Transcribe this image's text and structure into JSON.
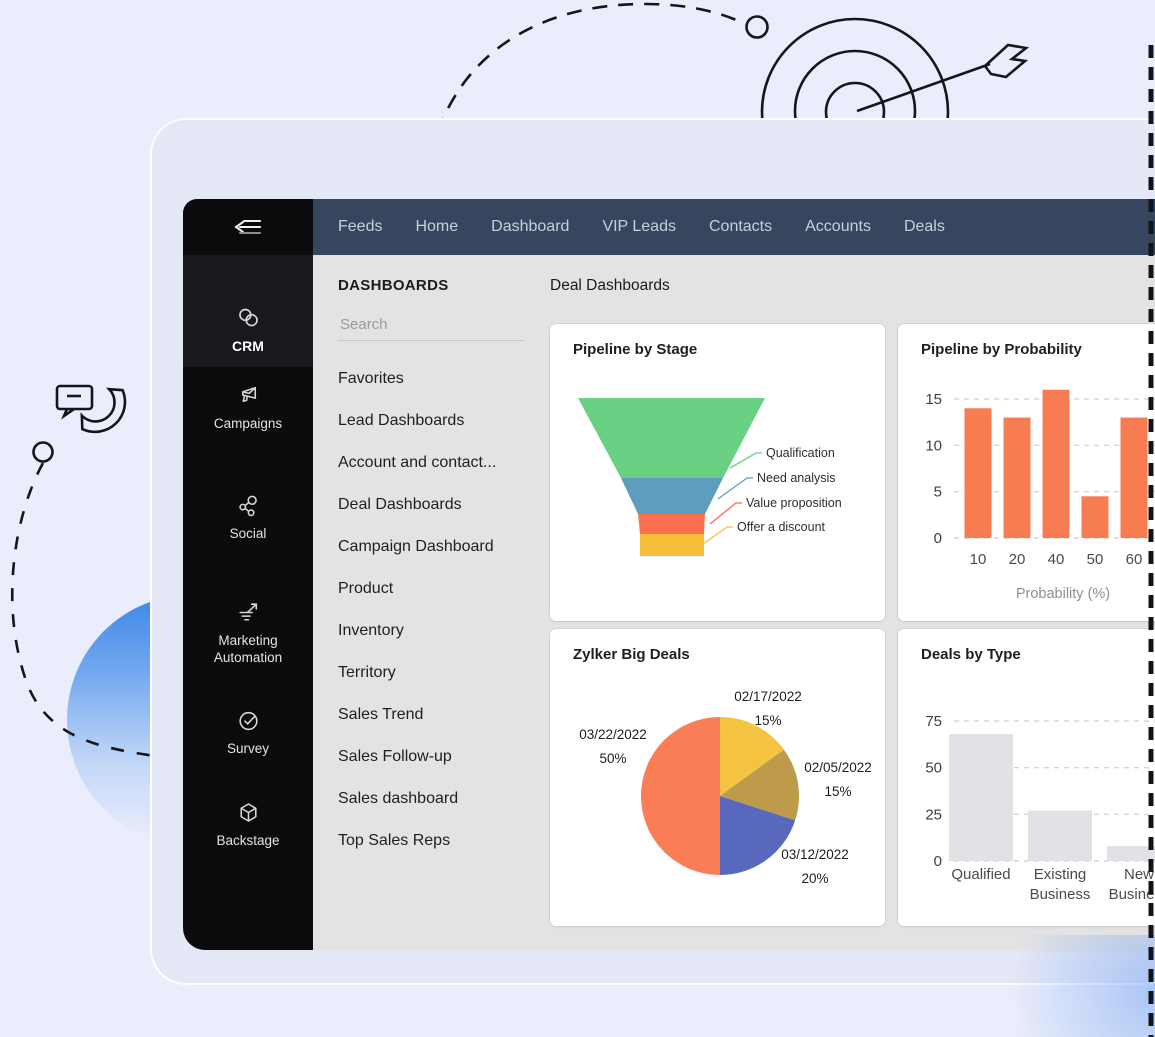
{
  "window": {
    "traffic_lights": [
      {
        "name": "close",
        "color": "#EC655A"
      },
      {
        "name": "minimize",
        "color": "#F0B43F"
      },
      {
        "name": "zoom",
        "color": "#55C152"
      }
    ]
  },
  "app_sidebar": {
    "items": [
      {
        "label": "CRM",
        "icon": "crm-rings-icon",
        "active": true
      },
      {
        "label": "Campaigns",
        "icon": "megaphone-icon"
      },
      {
        "label": "Social",
        "icon": "share-network-icon"
      },
      {
        "label": "Marketing Automation",
        "icon": "automation-arrow-icon"
      },
      {
        "label": "Survey",
        "icon": "check-circle-icon"
      },
      {
        "label": "Backstage",
        "icon": "cube-icon"
      }
    ]
  },
  "topnav": {
    "items": [
      "Feeds",
      "Home",
      "Dashboard",
      "VIP Leads",
      "Contacts",
      "Accounts",
      "Deals"
    ]
  },
  "dashboards_panel": {
    "title": "DASHBOARDS",
    "search_placeholder": "Search",
    "items": [
      "Favorites",
      "Lead Dashboards",
      "Account and contact...",
      "Deal Dashboards",
      "Campaign Dashboard",
      "Product",
      "Inventory",
      "Territory",
      "Sales Trend",
      "Sales Follow-up",
      "Sales dashboard",
      "Top Sales Reps"
    ]
  },
  "main": {
    "title": "Deal Dashboards"
  },
  "chart_data": [
    {
      "type": "funnel",
      "title": "Pipeline by Stage",
      "stages": [
        {
          "label": "Qualification",
          "color": "#69D084"
        },
        {
          "label": "Need analysis",
          "color": "#5E9DBE"
        },
        {
          "label": "Value proposition",
          "color": "#FA7050"
        },
        {
          "label": "Offer a discount",
          "color": "#F5BE38"
        }
      ]
    },
    {
      "type": "bar",
      "title": "Pipeline by Probability",
      "categories": [
        "10",
        "20",
        "40",
        "50",
        "60"
      ],
      "values": [
        14,
        13,
        16,
        4.5,
        13
      ],
      "ylim": [
        0,
        15
      ],
      "yticks": [
        0,
        5,
        10,
        15
      ],
      "xlabel": "Probability (%)",
      "bar_color": "#F87C52",
      "grid": "dashed",
      "legend": "none"
    },
    {
      "type": "pie",
      "title": "Zylker Big Deals",
      "slices": [
        {
          "label": "02/17/2022",
          "pct": 15,
          "color": "#F4C33F"
        },
        {
          "label": "02/05/2022",
          "pct": 15,
          "color": "#BE9B4B"
        },
        {
          "label": "03/12/2022",
          "pct": 20,
          "color": "#5868BC"
        },
        {
          "label": "03/22/2022",
          "pct": 50,
          "color": "#FA7D55"
        }
      ]
    },
    {
      "type": "bar",
      "title": "Deals by Type",
      "categories": [
        "Qualified",
        "Existing Business",
        "New Business"
      ],
      "values": [
        68,
        27,
        8
      ],
      "ylim": [
        0,
        75
      ],
      "yticks": [
        0,
        25,
        50,
        75
      ],
      "xlabel": "",
      "bar_color": "#E1E1E6",
      "grid": "dashed",
      "legend": "none"
    }
  ]
}
